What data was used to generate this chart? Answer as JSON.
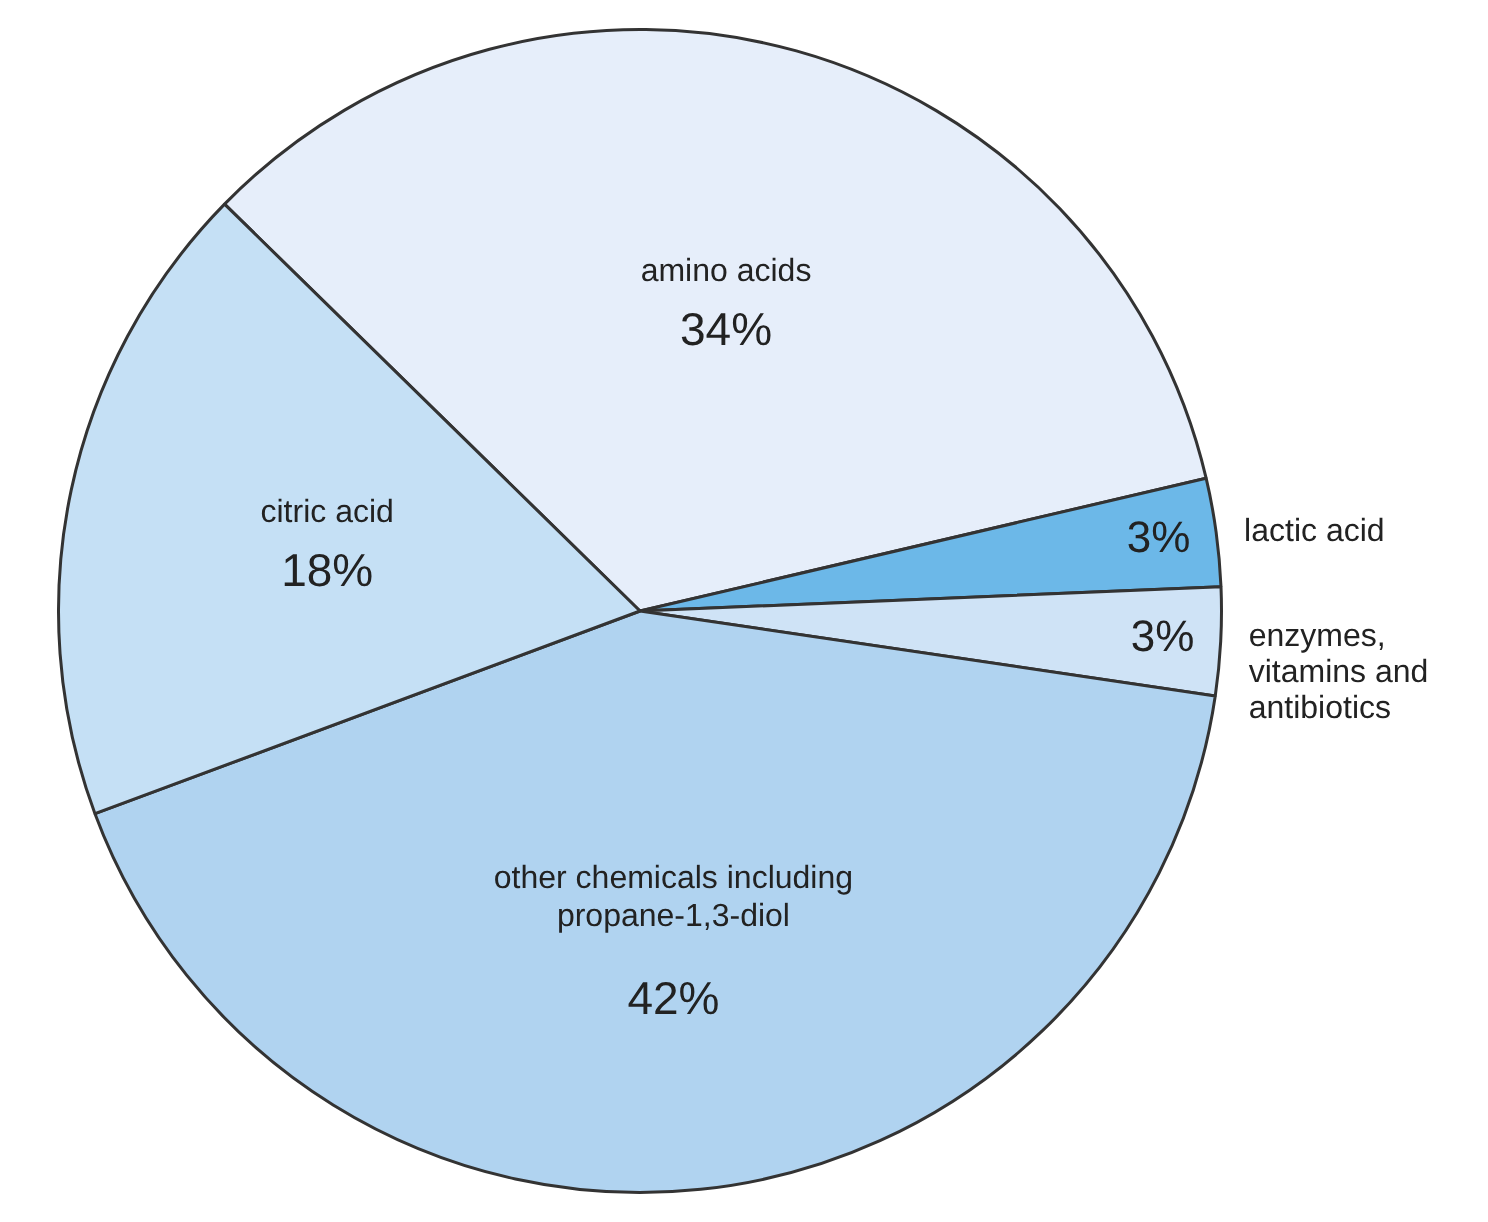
{
  "chart_data": {
    "type": "pie",
    "categories": [
      "amino acids",
      "lactic acid",
      "enzymes, vitamins and antibiotics",
      "other chemicals including propane-1,3-diol",
      "citric acid"
    ],
    "values": [
      34,
      3,
      3,
      42,
      18
    ],
    "value_labels": [
      "34%",
      "3%",
      "3%",
      "42%",
      "18%"
    ],
    "colors": [
      "#e6eefa",
      "#6cb8e8",
      "#cfe3f6",
      "#b0d3f0",
      "#c5e0f5"
    ],
    "legend": false
  }
}
